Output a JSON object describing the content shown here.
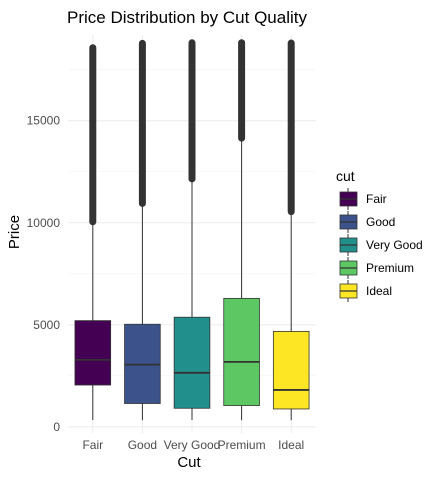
{
  "chart_data": {
    "type": "boxplot",
    "title": "Price Distribution by Cut Quality",
    "xlabel": "Cut",
    "ylabel": "Price",
    "ylim": [
      -300,
      19200
    ],
    "yticks": [
      0,
      5000,
      10000,
      15000
    ],
    "grid": true,
    "legend": {
      "title": "cut",
      "placement": "right",
      "entries": [
        "Fair",
        "Good",
        "Very Good",
        "Premium",
        "Ideal"
      ]
    },
    "categories": [
      "Fair",
      "Good",
      "Very Good",
      "Premium",
      "Ideal"
    ],
    "colors": [
      "#440154",
      "#3b528b",
      "#21908c",
      "#5dc863",
      "#fde725"
    ],
    "boxes": [
      {
        "category": "Fair",
        "min": 337,
        "q1": 2050,
        "median": 3282,
        "q3": 5206,
        "upper_whisker": 9900,
        "outlier_max": 18574
      },
      {
        "category": "Good",
        "min": 327,
        "q1": 1145,
        "median": 3050,
        "q3": 5028,
        "upper_whisker": 10800,
        "outlier_max": 18788
      },
      {
        "category": "Very Good",
        "min": 336,
        "q1": 912,
        "median": 2648,
        "q3": 5373,
        "upper_whisker": 12000,
        "outlier_max": 18818
      },
      {
        "category": "Premium",
        "min": 326,
        "q1": 1046,
        "median": 3185,
        "q3": 6296,
        "upper_whisker": 14000,
        "outlier_max": 18823
      },
      {
        "category": "Ideal",
        "min": 326,
        "q1": 878,
        "median": 1810,
        "q3": 4678,
        "upper_whisker": 10400,
        "outlier_max": 18806
      }
    ]
  }
}
